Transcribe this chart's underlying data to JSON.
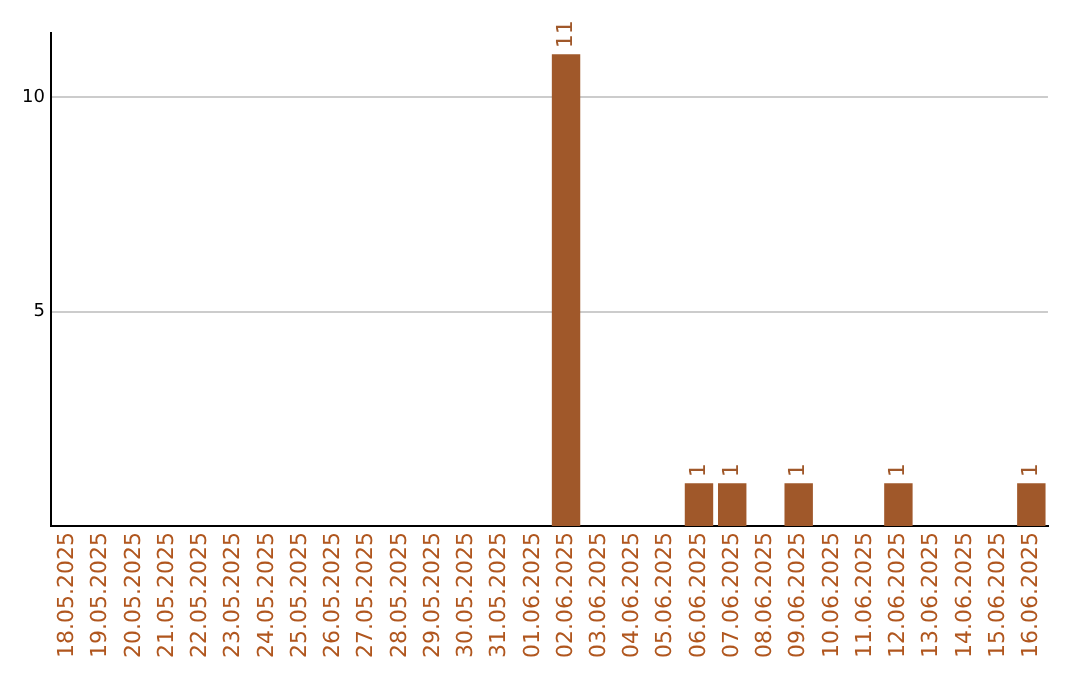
{
  "chart_data": {
    "type": "bar",
    "categories": [
      "18.05.2025",
      "19.05.2025",
      "20.05.2025",
      "21.05.2025",
      "22.05.2025",
      "23.05.2025",
      "24.05.2025",
      "25.05.2025",
      "26.05.2025",
      "27.05.2025",
      "28.05.2025",
      "29.05.2025",
      "30.05.2025",
      "31.05.2025",
      "01.06.2025",
      "02.06.2025",
      "03.06.2025",
      "04.06.2025",
      "05.06.2025",
      "06.06.2025",
      "07.06.2025",
      "08.06.2025",
      "09.06.2025",
      "10.06.2025",
      "11.06.2025",
      "12.06.2025",
      "13.06.2025",
      "14.06.2025",
      "15.06.2025",
      "16.06.2025"
    ],
    "values": [
      0,
      0,
      0,
      0,
      0,
      0,
      0,
      0,
      0,
      0,
      0,
      0,
      0,
      0,
      0,
      11,
      0,
      0,
      0,
      1,
      1,
      0,
      1,
      0,
      0,
      1,
      0,
      0,
      0,
      1
    ],
    "value_labels": [
      null,
      null,
      null,
      null,
      null,
      null,
      null,
      null,
      null,
      null,
      null,
      null,
      null,
      null,
      null,
      "11",
      null,
      null,
      null,
      "1",
      "1",
      null,
      "1",
      null,
      null,
      "1",
      null,
      null,
      null,
      "1"
    ],
    "color": "#a0582a",
    "ylim": [
      0,
      11.5
    ],
    "yticks": [
      5,
      10
    ],
    "grid": "y",
    "legend": false
  }
}
